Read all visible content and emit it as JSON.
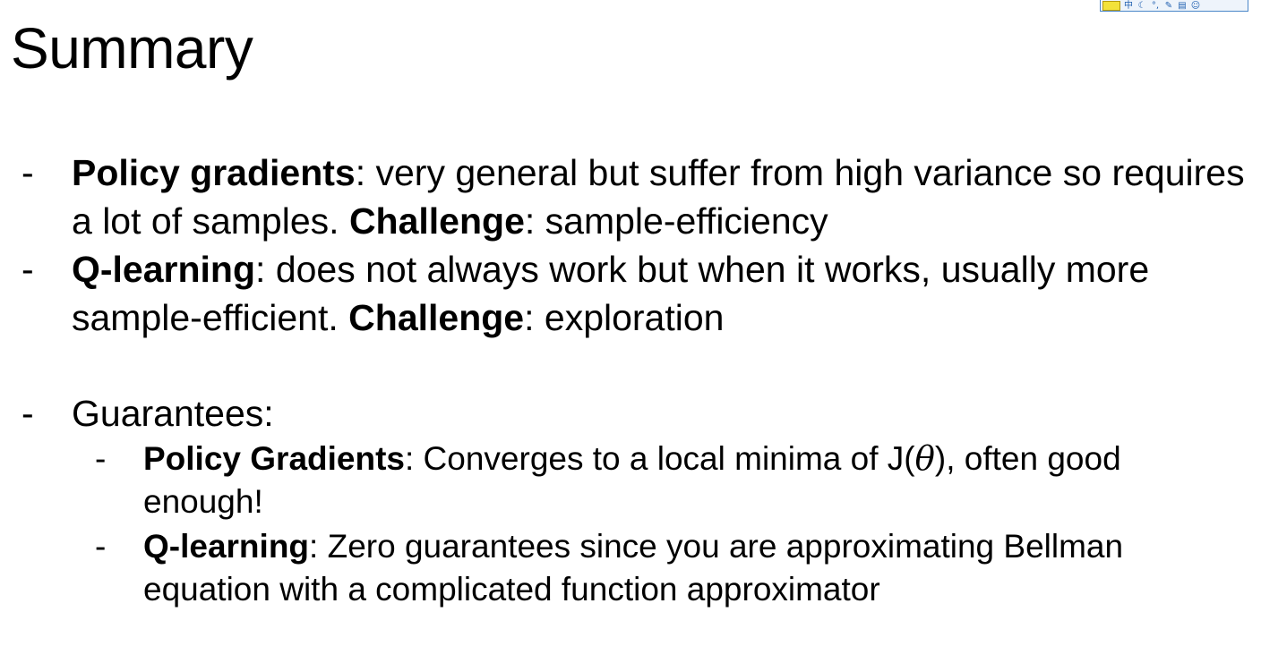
{
  "title": "Summary",
  "bullets": [
    {
      "dash": "-",
      "bold": "Policy gradients",
      "rest1": ": very general but suffer from high variance so requires a lot of samples. ",
      "bold2": "Challenge",
      "rest2": ": sample-efficiency"
    },
    {
      "dash": "-",
      "bold": "Q-learning",
      "rest1": ": does not always work but when it works, usually more sample-efficient. ",
      "bold2": "Challenge",
      "rest2": ": exploration"
    },
    {
      "dash": "-",
      "text": "Guarantees:"
    }
  ],
  "sub_bullets": [
    {
      "dash": "-",
      "bold": "Policy Gradients",
      "rest1": ": Converges to a local minima of J(",
      "theta": "θ",
      "rest2": "), often good enough!"
    },
    {
      "dash": "-",
      "bold": "Q-learning",
      "rest1": ": Zero guarantees since you are approximating Bellman equation with a complicated function approximator"
    }
  ],
  "toolbar": {
    "icons": [
      "logo-icon",
      "chinese-input-icon",
      "moon-icon",
      "punctuation-icon",
      "wrench-icon",
      "clipboard-icon",
      "smiley-icon"
    ],
    "glyphs": [
      "",
      "中",
      "☾",
      "°,",
      "✎",
      "▤",
      "☺"
    ]
  }
}
